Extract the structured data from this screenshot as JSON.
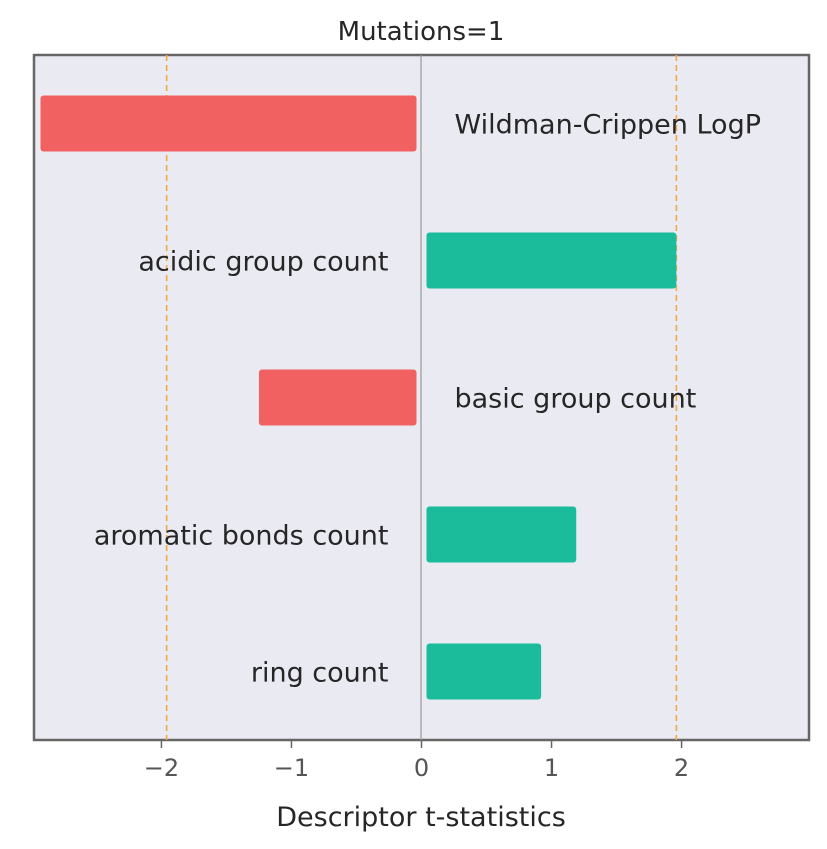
{
  "chart_data": {
    "type": "bar",
    "orientation": "horizontal",
    "title": "Mutations=1",
    "xlabel": "Descriptor t-statistics",
    "ylabel": "",
    "xlim": [
      -2.98,
      2.98
    ],
    "xticks": [
      -2,
      -1,
      0,
      1,
      2
    ],
    "xtick_labels": [
      "−2",
      "−1",
      "0",
      "1",
      "2"
    ],
    "threshold_lines": [
      -1.96,
      1.96
    ],
    "categories": [
      "Wildman-Crippen LogP",
      "acidic group count",
      "basic group count",
      "aromatic bonds count",
      "ring count"
    ],
    "values": [
      -2.93,
      1.96,
      -1.25,
      1.19,
      0.92
    ],
    "grid": false,
    "legend": "none"
  },
  "colors": {
    "negative": "#f26161",
    "positive": "#1abc9c",
    "threshold": "#f5a742",
    "zero_line": "#999999",
    "plot_background": "#eaeaf2",
    "frame": "#666666"
  }
}
